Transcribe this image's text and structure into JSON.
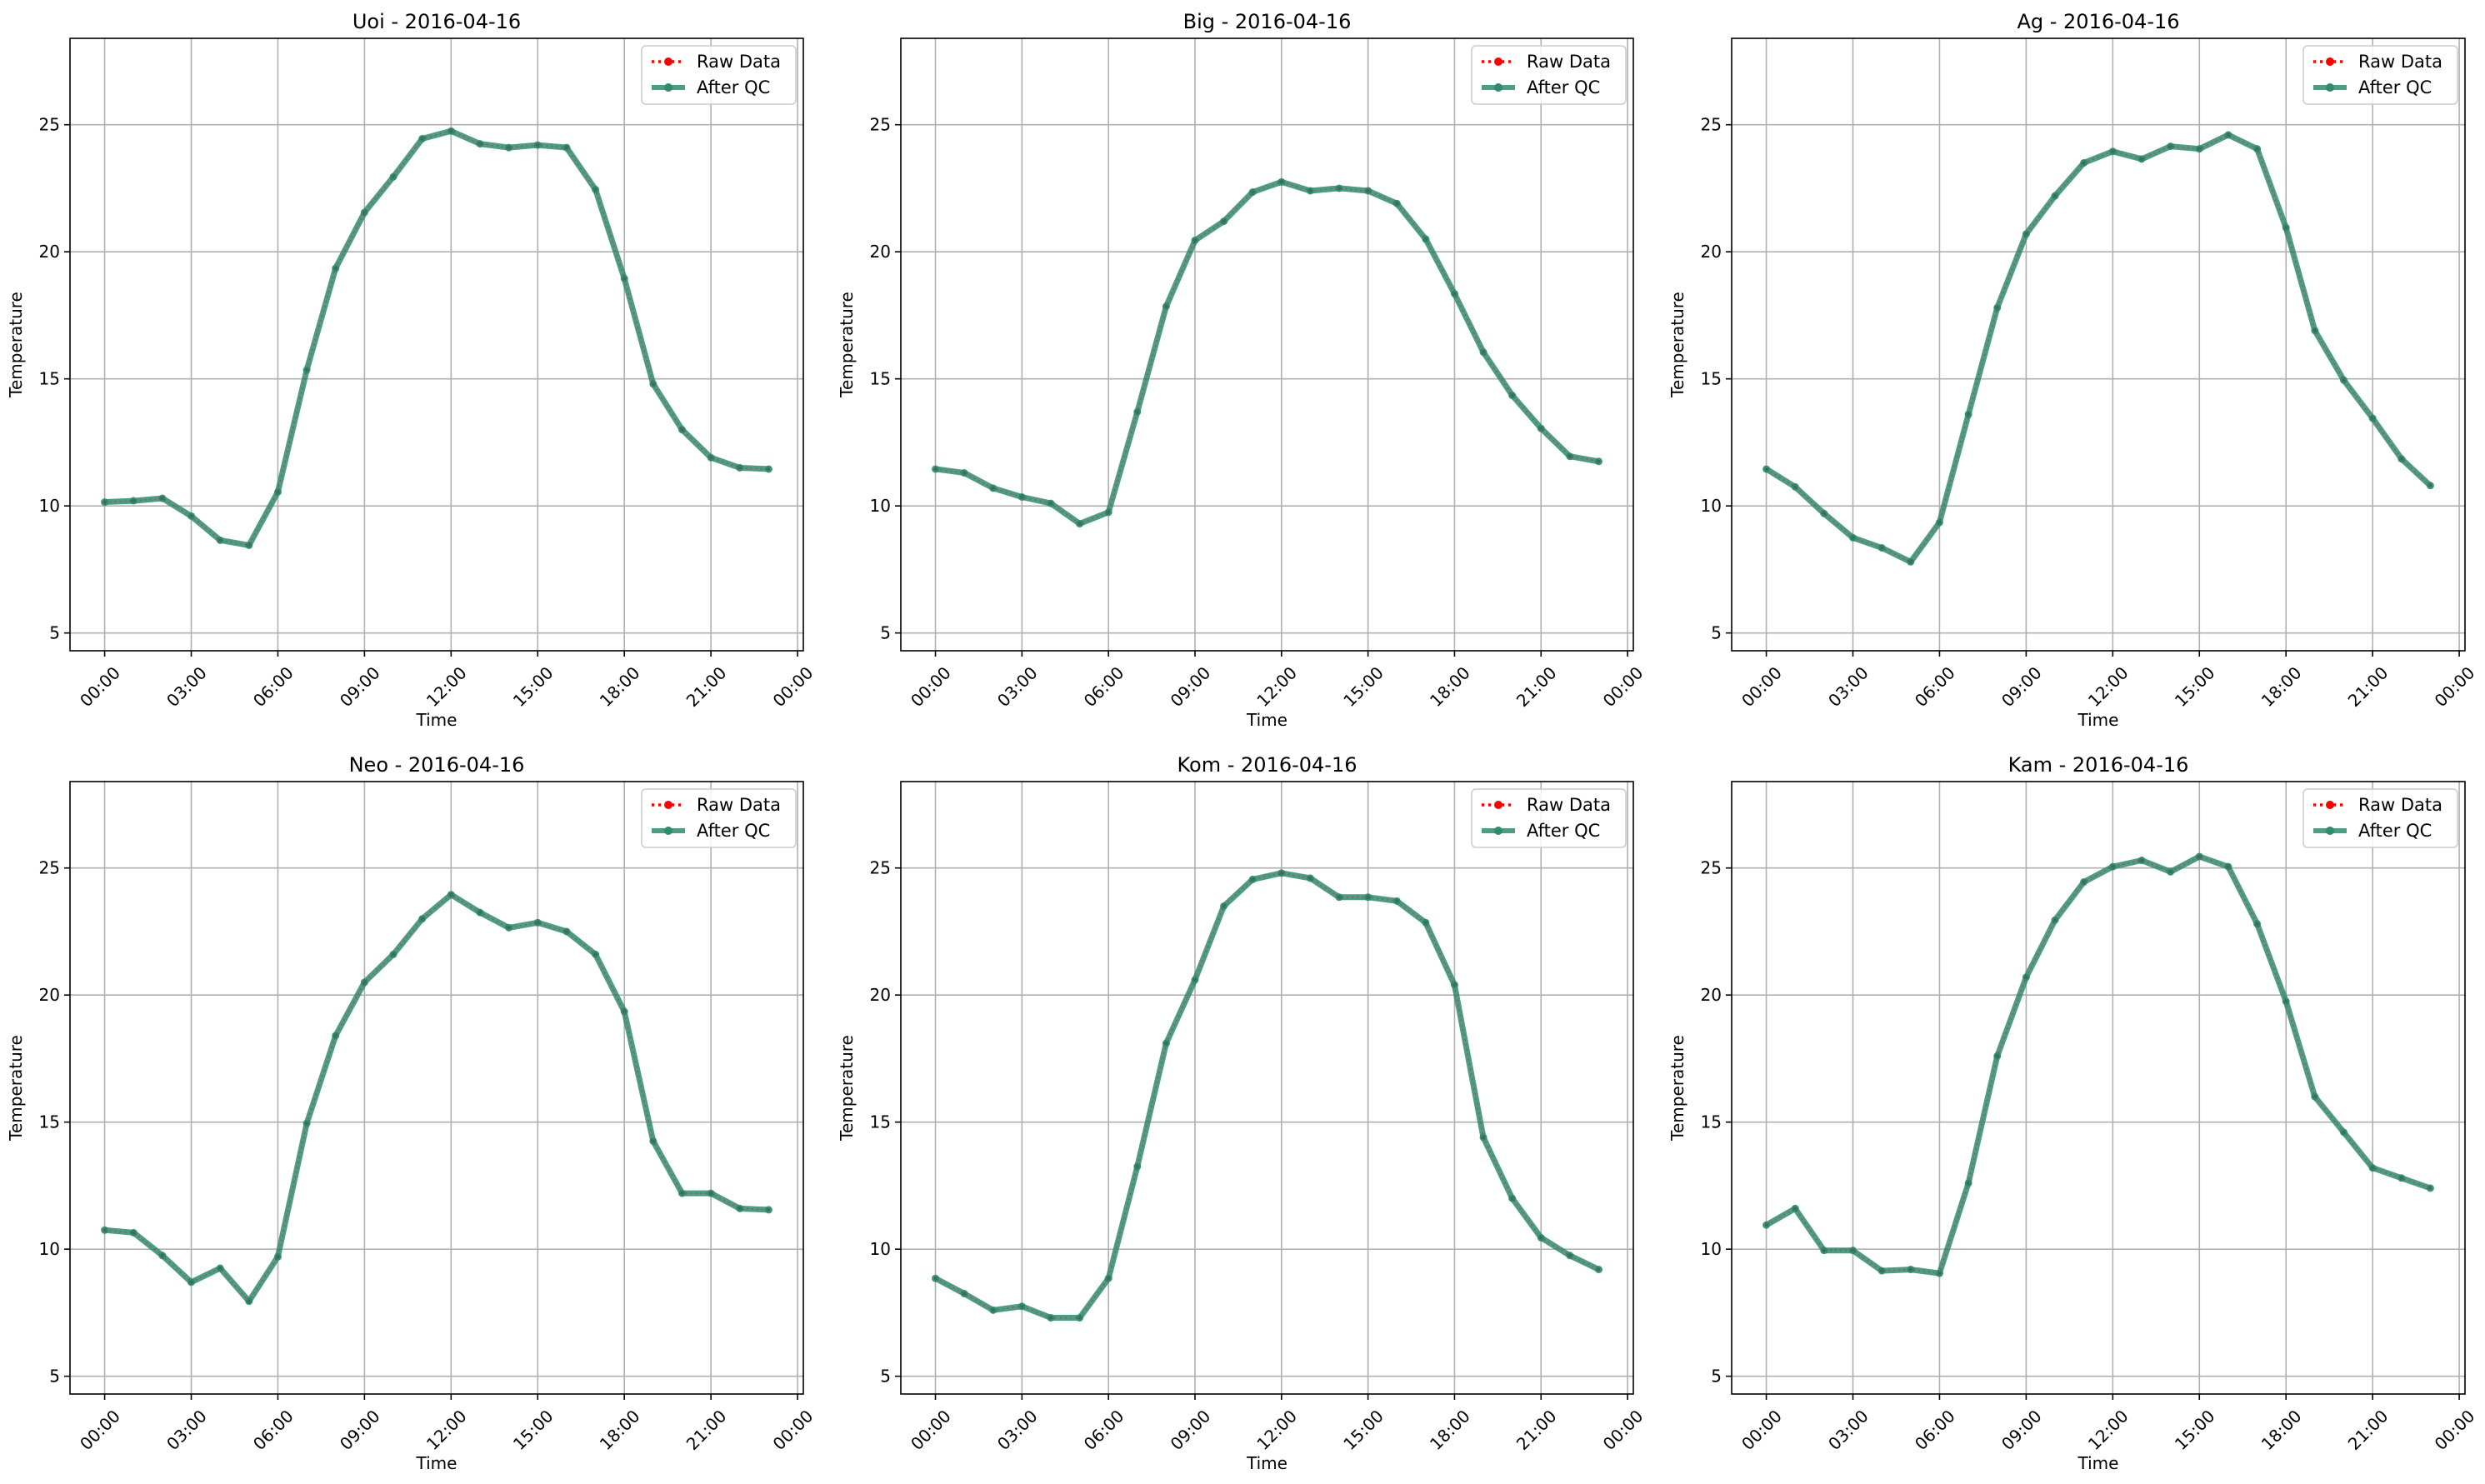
{
  "chart_data": [
    {
      "type": "line",
      "title": "Uoi - 2016-04-16",
      "xlabel": "Time",
      "ylabel": "Temperature",
      "xlim": [
        "2016-04-15 22:48",
        "2016-04-17 00:12"
      ],
      "ylim": [
        4.3,
        28.4
      ],
      "x_ticks": [
        "00:00",
        "03:00",
        "06:00",
        "09:00",
        "12:00",
        "15:00",
        "18:00",
        "21:00",
        "00:00"
      ],
      "y_ticks": [
        5,
        10,
        15,
        20,
        25
      ],
      "grid": true,
      "legend": "top-right",
      "x": [
        "00:00",
        "01:00",
        "02:00",
        "03:00",
        "04:00",
        "05:00",
        "06:00",
        "07:00",
        "08:00",
        "09:00",
        "10:00",
        "11:00",
        "12:00",
        "13:00",
        "14:00",
        "15:00",
        "16:00",
        "17:00",
        "18:00",
        "19:00",
        "20:00",
        "21:00",
        "22:00",
        "23:00"
      ],
      "series": [
        {
          "name": "Raw Data",
          "color": "#ff0000",
          "values": [
            10.15,
            10.2,
            10.3,
            9.6,
            8.65,
            8.45,
            10.55,
            15.35,
            19.35,
            21.55,
            22.95,
            24.45,
            24.75,
            24.25,
            24.1,
            24.2,
            24.1,
            22.45,
            18.95,
            14.8,
            13.0,
            11.9,
            11.5,
            11.45
          ]
        },
        {
          "name": "After QC",
          "color": "#2e8b6f",
          "values": [
            10.15,
            10.2,
            10.3,
            9.6,
            8.65,
            8.45,
            10.55,
            15.35,
            19.35,
            21.55,
            22.95,
            24.45,
            24.75,
            24.25,
            24.1,
            24.2,
            24.1,
            22.45,
            18.95,
            14.8,
            13.0,
            11.9,
            11.5,
            11.45
          ]
        }
      ]
    },
    {
      "type": "line",
      "title": "Big - 2016-04-16",
      "xlabel": "Time",
      "ylabel": "Temperature",
      "xlim": [
        "2016-04-15 22:48",
        "2016-04-17 00:12"
      ],
      "ylim": [
        4.3,
        28.4
      ],
      "x_ticks": [
        "00:00",
        "03:00",
        "06:00",
        "09:00",
        "12:00",
        "15:00",
        "18:00",
        "21:00",
        "00:00"
      ],
      "y_ticks": [
        5,
        10,
        15,
        20,
        25
      ],
      "grid": true,
      "legend": "top-right",
      "x": [
        "00:00",
        "01:00",
        "02:00",
        "03:00",
        "04:00",
        "05:00",
        "06:00",
        "07:00",
        "08:00",
        "09:00",
        "10:00",
        "11:00",
        "12:00",
        "13:00",
        "14:00",
        "15:00",
        "16:00",
        "17:00",
        "18:00",
        "19:00",
        "20:00",
        "21:00",
        "22:00",
        "23:00"
      ],
      "series": [
        {
          "name": "Raw Data",
          "color": "#ff0000",
          "values": [
            11.45,
            11.3,
            10.7,
            10.35,
            10.1,
            9.3,
            9.75,
            13.7,
            17.85,
            20.45,
            21.2,
            22.35,
            22.75,
            22.4,
            22.5,
            22.4,
            21.9,
            20.5,
            18.35,
            16.05,
            14.35,
            13.05,
            11.95,
            11.75
          ]
        },
        {
          "name": "After QC",
          "color": "#2e8b6f",
          "values": [
            11.45,
            11.3,
            10.7,
            10.35,
            10.1,
            9.3,
            9.75,
            13.7,
            17.85,
            20.45,
            21.2,
            22.35,
            22.75,
            22.4,
            22.5,
            22.4,
            21.9,
            20.5,
            18.35,
            16.05,
            14.35,
            13.05,
            11.95,
            11.75
          ]
        }
      ]
    },
    {
      "type": "line",
      "title": "Ag - 2016-04-16",
      "xlabel": "Time",
      "ylabel": "Temperature",
      "xlim": [
        "2016-04-15 22:48",
        "2016-04-17 00:12"
      ],
      "ylim": [
        4.3,
        28.4
      ],
      "x_ticks": [
        "00:00",
        "03:00",
        "06:00",
        "09:00",
        "12:00",
        "15:00",
        "18:00",
        "21:00",
        "00:00"
      ],
      "y_ticks": [
        5,
        10,
        15,
        20,
        25
      ],
      "grid": true,
      "legend": "top-right",
      "x": [
        "00:00",
        "01:00",
        "02:00",
        "03:00",
        "04:00",
        "05:00",
        "06:00",
        "07:00",
        "08:00",
        "09:00",
        "10:00",
        "11:00",
        "12:00",
        "13:00",
        "14:00",
        "15:00",
        "16:00",
        "17:00",
        "18:00",
        "19:00",
        "20:00",
        "21:00",
        "22:00",
        "23:00"
      ],
      "series": [
        {
          "name": "Raw Data",
          "color": "#ff0000",
          "values": [
            11.45,
            10.75,
            9.7,
            8.75,
            8.35,
            7.8,
            9.35,
            13.6,
            17.8,
            20.7,
            22.2,
            23.5,
            23.95,
            23.65,
            24.15,
            24.05,
            24.6,
            24.05,
            20.95,
            16.9,
            14.95,
            13.45,
            11.85,
            10.8
          ]
        },
        {
          "name": "After QC",
          "color": "#2e8b6f",
          "values": [
            11.45,
            10.75,
            9.7,
            8.75,
            8.35,
            7.8,
            9.35,
            13.6,
            17.8,
            20.7,
            22.2,
            23.5,
            23.95,
            23.65,
            24.15,
            24.05,
            24.6,
            24.05,
            20.95,
            16.9,
            14.95,
            13.45,
            11.85,
            10.8
          ]
        }
      ]
    },
    {
      "type": "line",
      "title": "Neo - 2016-04-16",
      "xlabel": "Time",
      "ylabel": "Temperature",
      "xlim": [
        "2016-04-15 22:48",
        "2016-04-17 00:12"
      ],
      "ylim": [
        4.3,
        28.4
      ],
      "x_ticks": [
        "00:00",
        "03:00",
        "06:00",
        "09:00",
        "12:00",
        "15:00",
        "18:00",
        "21:00",
        "00:00"
      ],
      "y_ticks": [
        5,
        10,
        15,
        20,
        25
      ],
      "grid": true,
      "legend": "top-right",
      "x": [
        "00:00",
        "01:00",
        "02:00",
        "03:00",
        "04:00",
        "05:00",
        "06:00",
        "07:00",
        "08:00",
        "09:00",
        "10:00",
        "11:00",
        "12:00",
        "13:00",
        "14:00",
        "15:00",
        "16:00",
        "17:00",
        "18:00",
        "19:00",
        "20:00",
        "21:00",
        "22:00",
        "23:00"
      ],
      "series": [
        {
          "name": "Raw Data",
          "color": "#ff0000",
          "values": [
            10.75,
            10.65,
            9.75,
            8.7,
            9.25,
            7.95,
            9.7,
            14.95,
            18.4,
            20.5,
            21.6,
            23.0,
            23.95,
            23.25,
            22.65,
            22.85,
            22.5,
            21.6,
            19.35,
            14.25,
            12.2,
            12.2,
            11.6,
            11.55
          ]
        },
        {
          "name": "After QC",
          "color": "#2e8b6f",
          "values": [
            10.75,
            10.65,
            9.75,
            8.7,
            9.25,
            7.95,
            9.7,
            14.95,
            18.4,
            20.5,
            21.6,
            23.0,
            23.95,
            23.25,
            22.65,
            22.85,
            22.5,
            21.6,
            19.35,
            14.25,
            12.2,
            12.2,
            11.6,
            11.55
          ]
        }
      ]
    },
    {
      "type": "line",
      "title": "Kom - 2016-04-16",
      "xlabel": "Time",
      "ylabel": "Temperature",
      "xlim": [
        "2016-04-15 22:48",
        "2016-04-17 00:12"
      ],
      "ylim": [
        4.3,
        28.4
      ],
      "x_ticks": [
        "00:00",
        "03:00",
        "06:00",
        "09:00",
        "12:00",
        "15:00",
        "18:00",
        "21:00",
        "00:00"
      ],
      "y_ticks": [
        5,
        10,
        15,
        20,
        25
      ],
      "grid": true,
      "legend": "top-right",
      "x": [
        "00:00",
        "01:00",
        "02:00",
        "03:00",
        "04:00",
        "05:00",
        "06:00",
        "07:00",
        "08:00",
        "09:00",
        "10:00",
        "11:00",
        "12:00",
        "13:00",
        "14:00",
        "15:00",
        "16:00",
        "17:00",
        "18:00",
        "19:00",
        "20:00",
        "21:00",
        "22:00",
        "23:00"
      ],
      "series": [
        {
          "name": "Raw Data",
          "color": "#ff0000",
          "values": [
            8.85,
            8.25,
            7.6,
            7.75,
            7.3,
            7.3,
            8.85,
            13.25,
            18.1,
            20.6,
            23.5,
            24.55,
            24.8,
            24.6,
            23.85,
            23.85,
            23.7,
            22.85,
            20.4,
            14.4,
            12.0,
            10.45,
            9.75,
            9.2
          ]
        },
        {
          "name": "After QC",
          "color": "#2e8b6f",
          "values": [
            8.85,
            8.25,
            7.6,
            7.75,
            7.3,
            7.3,
            8.85,
            13.25,
            18.1,
            20.6,
            23.5,
            24.55,
            24.8,
            24.6,
            23.85,
            23.85,
            23.7,
            22.85,
            20.4,
            14.4,
            12.0,
            10.45,
            9.75,
            9.2
          ]
        }
      ]
    },
    {
      "type": "line",
      "title": "Kam - 2016-04-16",
      "xlabel": "Time",
      "ylabel": "Temperature",
      "xlim": [
        "2016-04-15 22:48",
        "2016-04-17 00:12"
      ],
      "ylim": [
        4.3,
        28.4
      ],
      "x_ticks": [
        "00:00",
        "03:00",
        "06:00",
        "09:00",
        "12:00",
        "15:00",
        "18:00",
        "21:00",
        "00:00"
      ],
      "y_ticks": [
        5,
        10,
        15,
        20,
        25
      ],
      "grid": true,
      "legend": "top-right",
      "x": [
        "00:00",
        "01:00",
        "02:00",
        "03:00",
        "04:00",
        "05:00",
        "06:00",
        "07:00",
        "08:00",
        "09:00",
        "10:00",
        "11:00",
        "12:00",
        "13:00",
        "14:00",
        "15:00",
        "16:00",
        "17:00",
        "18:00",
        "19:00",
        "20:00",
        "21:00",
        "22:00",
        "23:00"
      ],
      "series": [
        {
          "name": "Raw Data",
          "color": "#ff0000",
          "values": [
            10.95,
            11.6,
            9.95,
            9.95,
            9.15,
            9.2,
            9.05,
            12.6,
            17.6,
            20.7,
            22.95,
            24.45,
            25.05,
            25.3,
            24.85,
            25.45,
            25.05,
            22.8,
            19.75,
            16.0,
            14.6,
            13.2,
            12.8,
            12.4
          ]
        },
        {
          "name": "After QC",
          "color": "#2e8b6f",
          "values": [
            10.95,
            11.6,
            9.95,
            9.95,
            9.15,
            9.2,
            9.05,
            12.6,
            17.6,
            20.7,
            22.95,
            24.45,
            25.05,
            25.3,
            24.85,
            25.45,
            25.05,
            22.8,
            19.75,
            16.0,
            14.6,
            13.2,
            12.8,
            12.4
          ]
        }
      ]
    }
  ]
}
